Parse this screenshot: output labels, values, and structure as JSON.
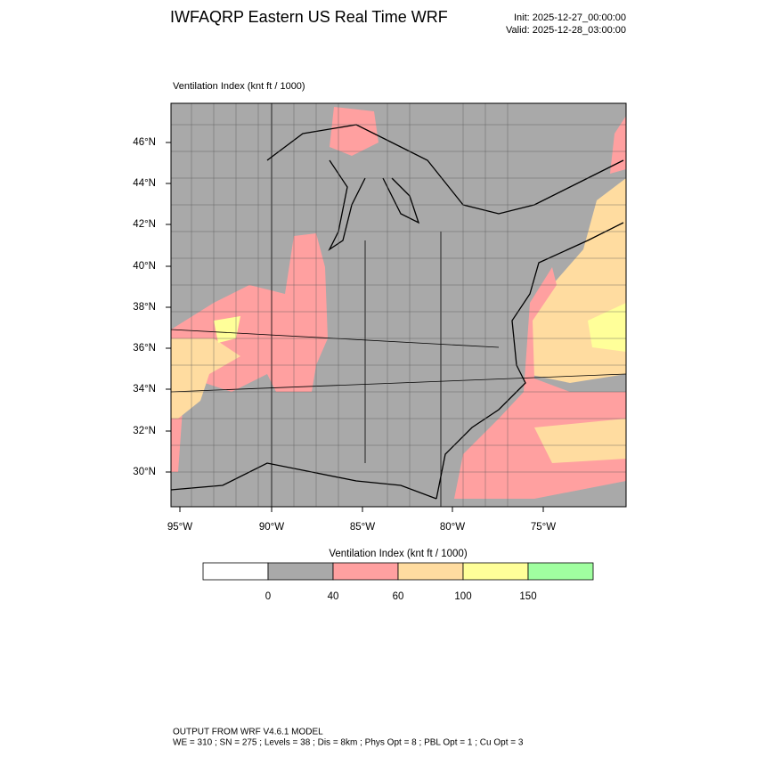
{
  "header": {
    "title": "IWFAQRP Eastern US Real Time WRF",
    "init": "Init: 2025-12-27_00:00:00",
    "valid": "Valid: 2025-12-28_03:00:00"
  },
  "map": {
    "field_label": "Ventilation Index   (knt ft / 1000)",
    "lat_labels": [
      "46°N",
      "44°N",
      "42°N",
      "40°N",
      "38°N",
      "36°N",
      "34°N",
      "32°N",
      "30°N"
    ],
    "lon_labels": [
      "95°W",
      "90°W",
      "85°W",
      "80°W",
      "75°W"
    ]
  },
  "colorbar": {
    "title": "Ventilation Index  (knt ft / 1000)",
    "colors": [
      "#ffffff",
      "#a9a9a9",
      "#ffa0a0",
      "#ffdca0",
      "#ffff99",
      "#a0ffa0"
    ],
    "boundaries": [
      0,
      40,
      60,
      100,
      150
    ]
  },
  "footer": {
    "line1": "OUTPUT FROM WRF V4.6.1 MODEL",
    "line2": "WE = 310 ; SN = 275 ; Levels = 38 ; Dis = 8km ; Phys Opt = 8 ; PBL Opt = 1 ; Cu Opt = 3"
  }
}
